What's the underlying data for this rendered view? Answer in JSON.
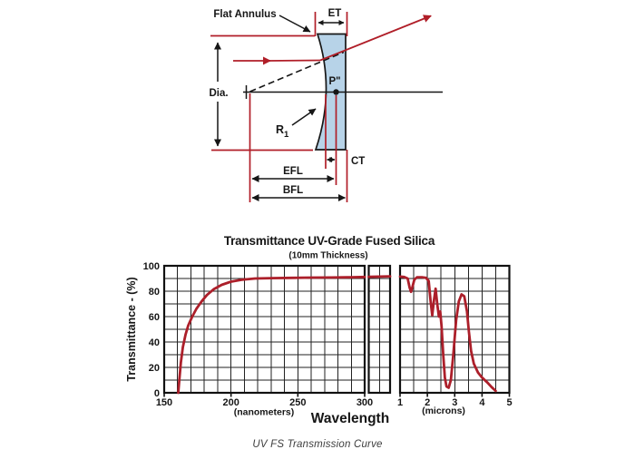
{
  "diagram": {
    "flat_annulus_label": "Flat Annulus",
    "et_label": "ET",
    "dia_label": "Dia.",
    "p_label": "P\"",
    "r1_main": "R",
    "r1_sub": "1",
    "ct_label": "CT",
    "efl_label": "EFL",
    "bfl_label": "BFL"
  },
  "chart_data": {
    "type": "line",
    "title": "Transmittance UV-Grade Fused Silica",
    "subtitle": "(10mm Thickness)",
    "ylabel": "Transmittance - (%)",
    "xlabel": "Wavelength",
    "ylim": [
      0,
      100
    ],
    "y_ticks": [
      0,
      20,
      40,
      60,
      80,
      100
    ],
    "y_gridstep": 10,
    "grid": "on",
    "legend": "none",
    "panels": [
      {
        "unit_label": "(nanometers)",
        "xlim": [
          150,
          300
        ],
        "x_gridstep": 10,
        "x_ticks": [
          150,
          200,
          250,
          300
        ],
        "points": [
          [
            160.5,
            0
          ],
          [
            161.5,
            12
          ],
          [
            162.5,
            24
          ],
          [
            164,
            36
          ],
          [
            166,
            46
          ],
          [
            168,
            53
          ],
          [
            171,
            60
          ],
          [
            174,
            66
          ],
          [
            178,
            72
          ],
          [
            182,
            77
          ],
          [
            187,
            81.5
          ],
          [
            193,
            85
          ],
          [
            200,
            87.5
          ],
          [
            208,
            89
          ],
          [
            218,
            90
          ],
          [
            230,
            90.3
          ],
          [
            245,
            90.5
          ],
          [
            260,
            90.7
          ],
          [
            275,
            90.8
          ],
          [
            290,
            91
          ],
          [
            300,
            91.2
          ]
        ]
      },
      {
        "unit_label": "",
        "xlim": [
          0,
          2
        ],
        "x_gridstep": 1,
        "x_ticks": [],
        "points": [
          [
            0,
            91.3
          ],
          [
            2,
            91.7
          ]
        ]
      },
      {
        "unit_label": "(microns)",
        "xlim": [
          1,
          5
        ],
        "x_gridstep": 0.5,
        "x_ticks": [
          1,
          2,
          3,
          4,
          5
        ],
        "points": [
          [
            1.0,
            91.5
          ],
          [
            1.15,
            91.2
          ],
          [
            1.28,
            90
          ],
          [
            1.35,
            83
          ],
          [
            1.4,
            79.5
          ],
          [
            1.46,
            84
          ],
          [
            1.52,
            89
          ],
          [
            1.62,
            91
          ],
          [
            1.8,
            91
          ],
          [
            1.95,
            90.5
          ],
          [
            2.05,
            88
          ],
          [
            2.12,
            72
          ],
          [
            2.18,
            61
          ],
          [
            2.24,
            73
          ],
          [
            2.3,
            82
          ],
          [
            2.36,
            70
          ],
          [
            2.42,
            60
          ],
          [
            2.47,
            64
          ],
          [
            2.52,
            52
          ],
          [
            2.58,
            30
          ],
          [
            2.64,
            12
          ],
          [
            2.7,
            5
          ],
          [
            2.78,
            4
          ],
          [
            2.86,
            10
          ],
          [
            2.95,
            30
          ],
          [
            3.05,
            57
          ],
          [
            3.15,
            72
          ],
          [
            3.25,
            77.5
          ],
          [
            3.35,
            76
          ],
          [
            3.45,
            64
          ],
          [
            3.52,
            48
          ],
          [
            3.6,
            33
          ],
          [
            3.7,
            23
          ],
          [
            3.85,
            16
          ],
          [
            4.0,
            12
          ],
          [
            4.2,
            8
          ],
          [
            4.35,
            4.5
          ],
          [
            4.5,
            1.5
          ]
        ]
      }
    ]
  },
  "caption": "UV FS Transmission Curve",
  "colors": {
    "accent_red": "#b01e28",
    "curve_red": "#ac1f2a",
    "lens_blue": "#b7d3e8",
    "ink": "#161616"
  }
}
